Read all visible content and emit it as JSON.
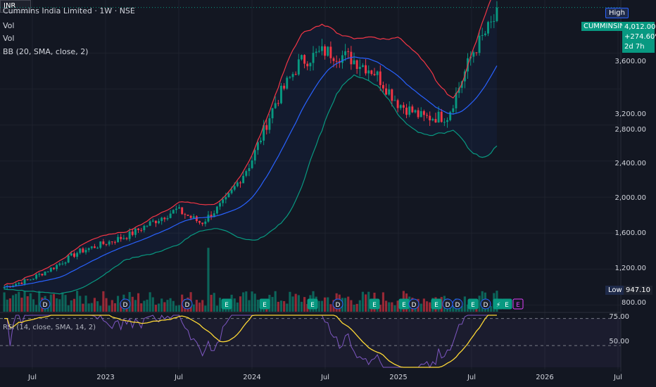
{
  "legend": {
    "title": "Cummins India Limited · 1W · NSE",
    "vol1": "Vol",
    "vol2": "Vol",
    "bb": "BB (20, SMA, close, 2)",
    "rsi": "RSI (14, close, SMA, 14, 2)"
  },
  "top_right": {
    "high_btn": "High",
    "currency": "INR",
    "symbol": "CUMMINSIND",
    "last_price": "4,012.00",
    "change": "+274.60%",
    "timer": "2d 7h",
    "low_tag": "Low",
    "low_value": "947.10"
  },
  "price_axis": [
    "3,600.00",
    "3,200.00",
    "2,800.00",
    "2,400.00",
    "2,000.00",
    "1,600.00",
    "1,200.00",
    "800.00"
  ],
  "rsi_axis": [
    "75.00",
    "50.00"
  ],
  "time_axis": [
    "Jul",
    "2023",
    "Jul",
    "2024",
    "Jul",
    "2025",
    "Jul",
    "2026",
    "Jul"
  ],
  "colors": {
    "background": "#131722",
    "up": "#089981",
    "down": "#f23645",
    "bb_upper": "#f23645",
    "bb_basis": "#2962ff",
    "bb_lower": "#089981",
    "rsi": "#7e57c2",
    "rsi_ma": "#fdd835"
  },
  "event_markers": [
    "D",
    "D",
    "D",
    "E",
    "E",
    "E",
    "D",
    "E",
    "E",
    "D",
    "E",
    "D",
    "D",
    "E",
    "D",
    "E",
    "⚡",
    "E"
  ],
  "chart_data": {
    "type": "candlestick",
    "x": [
      "2022-05",
      "2022-07",
      "2022-09",
      "2022-11",
      "2023-01",
      "2023-03",
      "2023-05",
      "2023-07",
      "2023-09",
      "2023-11",
      "2024-01",
      "2024-03",
      "2024-05",
      "2024-07",
      "2024-09",
      "2024-11",
      "2025-01",
      "2025-03",
      "2025-05",
      "2025-07",
      "2025-08"
    ],
    "close": [
      1000,
      1080,
      1220,
      1390,
      1480,
      1570,
      1720,
      1860,
      1710,
      1960,
      2380,
      3050,
      3500,
      3620,
      3550,
      3400,
      3040,
      2880,
      2900,
      3600,
      4012
    ],
    "price_ylim": [
      750,
      4150
    ],
    "rsi_ylim": [
      30,
      78
    ],
    "rsi_levels": [
      75,
      50
    ]
  }
}
